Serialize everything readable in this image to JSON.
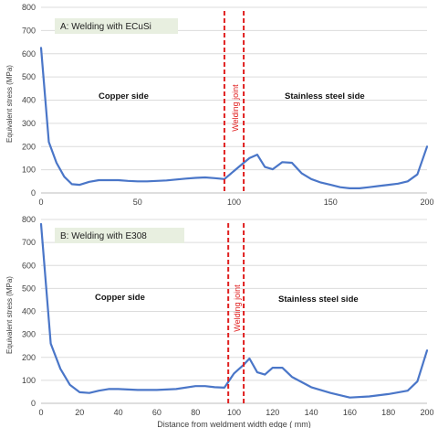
{
  "chart_data": [
    {
      "type": "line",
      "panel_label": "A: Welding with ECuSi",
      "ylabel": "Equivalent stress (MPa)",
      "xlabel": "",
      "xlim": [
        0,
        200
      ],
      "ylim": [
        0,
        800
      ],
      "xticks": [
        0,
        50,
        100,
        150,
        200
      ],
      "yticks": [
        0,
        100,
        200,
        300,
        400,
        500,
        600,
        700,
        800
      ],
      "grid": "horizontal",
      "series": [
        {
          "color": "#4a76c8",
          "x": [
            0,
            4,
            8,
            12,
            16,
            20,
            25,
            30,
            35,
            40,
            45,
            50,
            55,
            60,
            65,
            70,
            75,
            80,
            85,
            90,
            95,
            100,
            105,
            108,
            112,
            116,
            120,
            125,
            130,
            135,
            140,
            145,
            150,
            155,
            160,
            165,
            170,
            175,
            180,
            185,
            190,
            195,
            200
          ],
          "y": [
            625,
            220,
            130,
            70,
            38,
            35,
            48,
            55,
            55,
            55,
            52,
            50,
            50,
            52,
            54,
            58,
            62,
            65,
            67,
            64,
            60,
            95,
            130,
            150,
            165,
            112,
            102,
            133,
            130,
            85,
            60,
            45,
            35,
            25,
            20,
            20,
            25,
            30,
            35,
            40,
            50,
            80,
            200
          ]
        }
      ],
      "annotations": {
        "left_region": "Copper side",
        "right_region": "Stainless steel side",
        "joint": "Welding joint"
      },
      "joint_lines_x": [
        95,
        105
      ]
    },
    {
      "type": "line",
      "panel_label": "B: Welding with E308",
      "ylabel": "Equivalent stress (MPa)",
      "xlabel": "Distance from weldment width edge ( mm)",
      "xlim": [
        0,
        200
      ],
      "ylim": [
        0,
        800
      ],
      "xticks": [
        0,
        20,
        40,
        60,
        80,
        100,
        120,
        140,
        160,
        180,
        200
      ],
      "yticks": [
        0,
        100,
        200,
        300,
        400,
        500,
        600,
        700,
        800
      ],
      "grid": "horizontal",
      "series": [
        {
          "color": "#4a76c8",
          "x": [
            0,
            5,
            10,
            15,
            20,
            25,
            30,
            35,
            40,
            50,
            60,
            70,
            80,
            85,
            90,
            95,
            100,
            105,
            108,
            112,
            116,
            120,
            125,
            130,
            140,
            150,
            160,
            170,
            180,
            190,
            195,
            200
          ],
          "y": [
            780,
            260,
            150,
            80,
            48,
            45,
            55,
            62,
            62,
            58,
            58,
            62,
            75,
            75,
            70,
            68,
            130,
            168,
            195,
            135,
            125,
            155,
            155,
            115,
            70,
            45,
            25,
            30,
            40,
            55,
            95,
            230
          ]
        }
      ],
      "annotations": {
        "left_region": "Copper side",
        "right_region": "Stainless steel side",
        "joint": "Welding joint"
      },
      "joint_lines_x": [
        97,
        105
      ]
    }
  ]
}
